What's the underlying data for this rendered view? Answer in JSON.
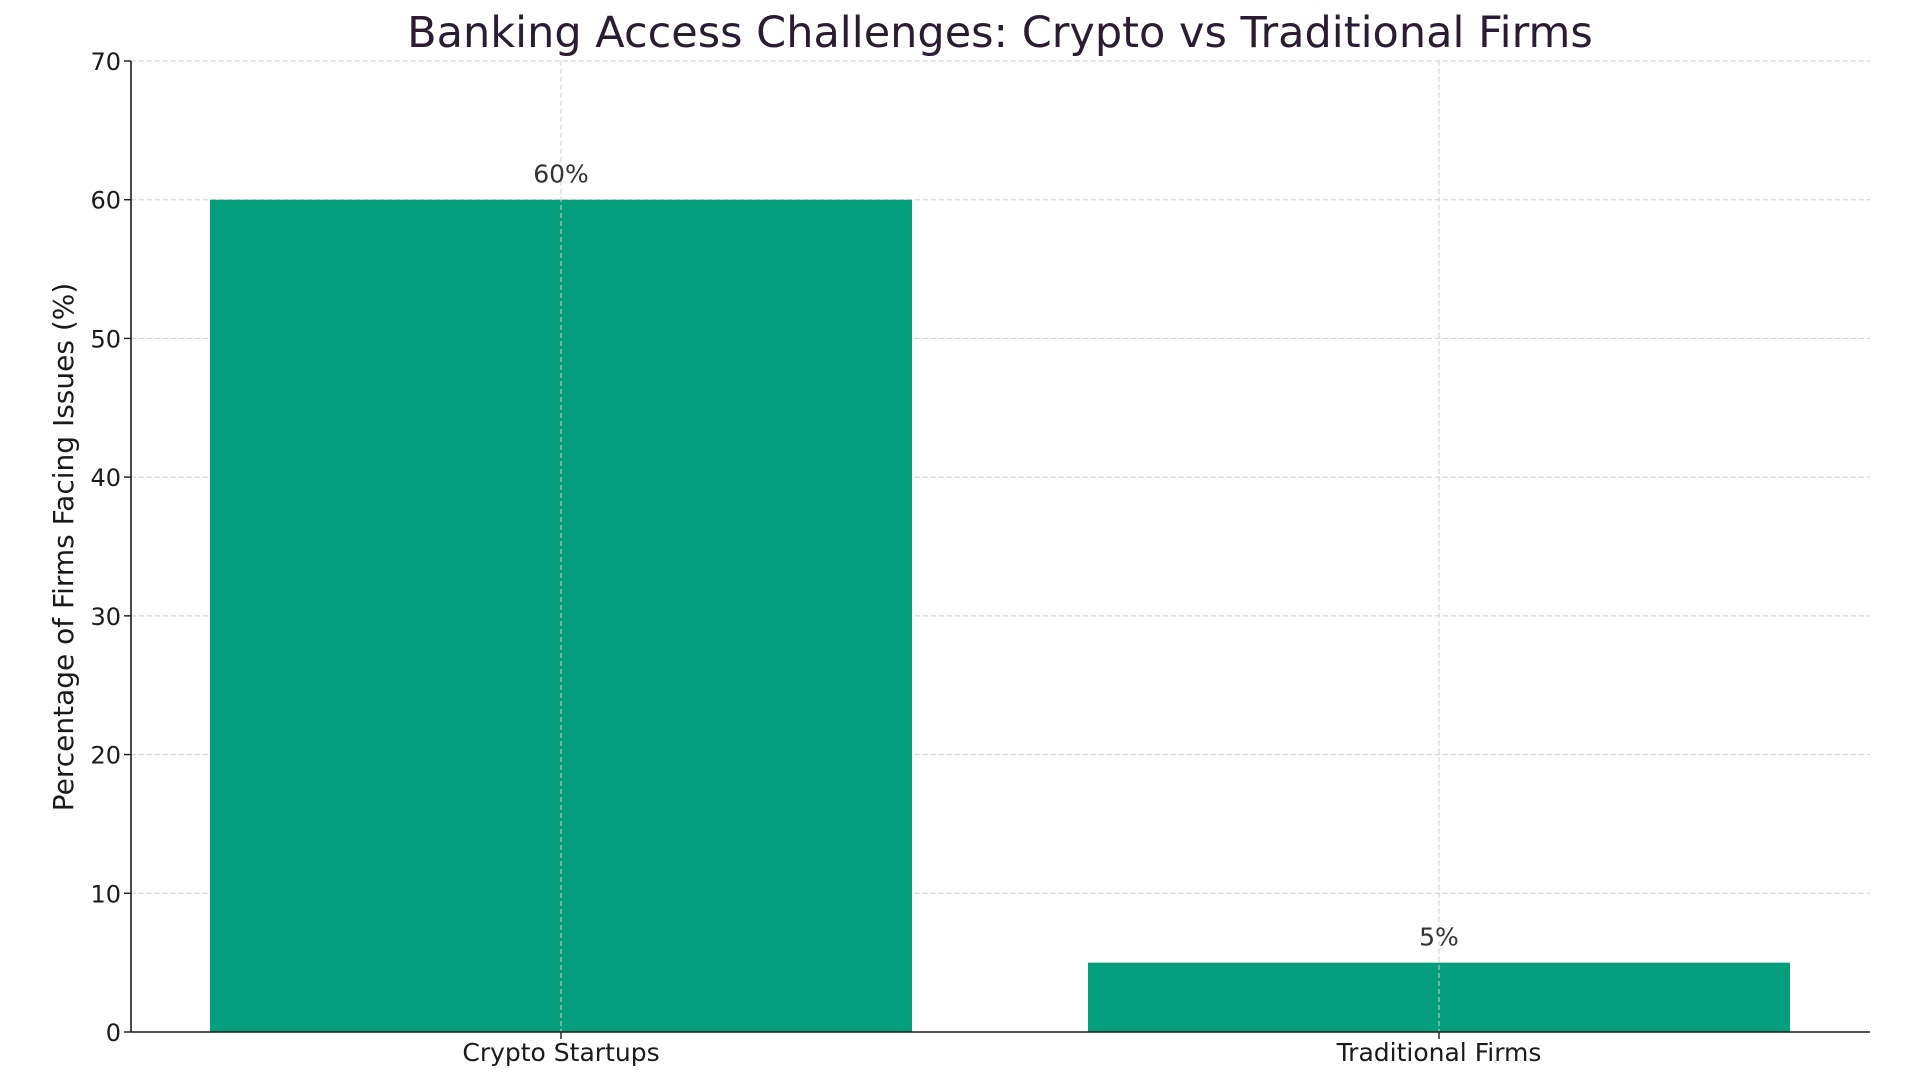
{
  "chart_data": {
    "type": "bar",
    "title": "Banking Access Challenges: Crypto vs Traditional Firms",
    "xlabel": "",
    "ylabel": "Percentage of Firms Facing Issues (%)",
    "categories": [
      "Crypto Startups",
      "Traditional Firms"
    ],
    "values": [
      60,
      5
    ],
    "value_labels": [
      "60%",
      "5%"
    ],
    "ylim": [
      0,
      70
    ],
    "yticks": [
      0,
      10,
      20,
      30,
      40,
      50,
      60,
      70
    ],
    "ytick_labels": [
      "0",
      "10",
      "20",
      "30",
      "40",
      "50",
      "60",
      "70"
    ],
    "grid": true,
    "grid_style": "dashed",
    "legend": null,
    "colors": {
      "bar": "#069f7d",
      "title": "#2b1d31",
      "text": "#1a1a1a",
      "grid": "#cfcfcf"
    }
  }
}
